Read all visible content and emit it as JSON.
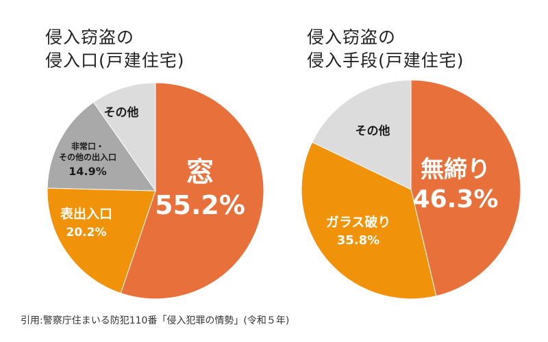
{
  "chart_data": [
    {
      "type": "pie",
      "title_lines": [
        "侵入窃盗の",
        "侵入口(戸建住宅)"
      ],
      "slices": [
        {
          "label": "窓",
          "label_lines": [
            "窓"
          ],
          "value": 55.2,
          "value_text": "55.2%",
          "color": "#e8703a",
          "text_color": "#ffffff"
        },
        {
          "label": "表出入口",
          "label_lines": [
            "表出入口"
          ],
          "value": 20.2,
          "value_text": "20.2%",
          "color": "#f0930a",
          "text_color": "#ffffff"
        },
        {
          "label": "非常口・その他の出入口",
          "label_lines": [
            "非常口・",
            "その他の出入口"
          ],
          "value": 14.9,
          "value_text": "14.9%",
          "color": "#a9a9a9",
          "text_color": "#1a1a1a"
        },
        {
          "label": "その他",
          "label_lines": [
            "その他"
          ],
          "value": 9.7,
          "value_text": "",
          "color": "#dcdcdc",
          "text_color": "#1a1a1a"
        }
      ]
    },
    {
      "type": "pie",
      "title_lines": [
        "侵入窃盗の",
        "侵入手段(戸建住宅)"
      ],
      "slices": [
        {
          "label": "無締り",
          "label_lines": [
            "無締り"
          ],
          "value": 46.3,
          "value_text": "46.3%",
          "color": "#e8703a",
          "text_color": "#ffffff"
        },
        {
          "label": "ガラス破り",
          "label_lines": [
            "ガラス破り"
          ],
          "value": 35.8,
          "value_text": "35.8%",
          "color": "#f0930a",
          "text_color": "#ffffff"
        },
        {
          "label": "その他",
          "label_lines": [
            "その他"
          ],
          "value": 17.9,
          "value_text": "",
          "color": "#dcdcdc",
          "text_color": "#1a1a1a"
        }
      ]
    }
  ],
  "source": "引用:警察庁住まいる防犯110番「侵入犯罪の情勢」(令和５年)"
}
